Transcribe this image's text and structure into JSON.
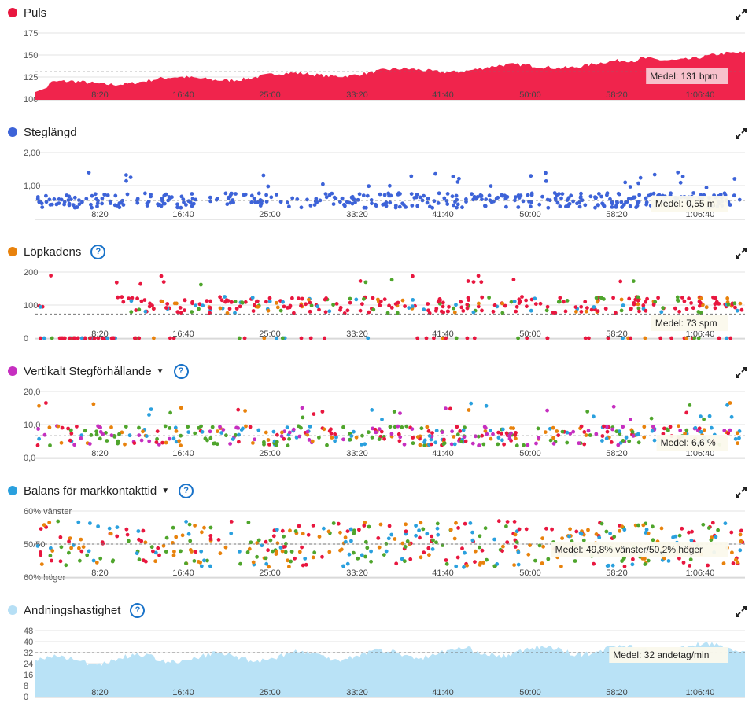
{
  "xlabels": [
    "8:20",
    "16:40",
    "25:00",
    "33:20",
    "41:40",
    "50:00",
    "58:20",
    "1:06:40"
  ],
  "panels": [
    {
      "key": "puls",
      "title": "Puls",
      "color": "#e8173f",
      "help": false,
      "caret": false,
      "yticks": [
        "175",
        "150",
        "125",
        "100"
      ],
      "yvalues": [
        175,
        150,
        125,
        100
      ],
      "ylim": [
        100,
        175
      ],
      "mean_label": "Medel: 131 bpm",
      "mean_value": 131,
      "kind": "area",
      "fill": "#f0244c"
    },
    {
      "key": "steglangd",
      "title": "Steglängd",
      "color": "#3d63d8",
      "help": false,
      "caret": false,
      "yticks": [
        "2,00",
        "1,00"
      ],
      "yvalues": [
        2.0,
        1.0
      ],
      "ylim": [
        0,
        2.0
      ],
      "mean_label": "Medel: 0,55 m",
      "mean_value": 0.55,
      "kind": "dots"
    },
    {
      "key": "lopkadens",
      "title": "Löpkadens",
      "color": "#e8820c",
      "help": true,
      "caret": false,
      "yticks": [
        "200",
        "100",
        "0"
      ],
      "yvalues": [
        200,
        100,
        0
      ],
      "ylim": [
        0,
        200
      ],
      "mean_label": "Medel: 73 spm",
      "mean_value": 73,
      "kind": "dots"
    },
    {
      "key": "vertikalt",
      "title": "Vertikalt Stegförhållande",
      "color": "#c62fc0",
      "help": true,
      "caret": true,
      "yticks": [
        "20,0",
        "10,0",
        "0,0"
      ],
      "yvalues": [
        20,
        10,
        0
      ],
      "ylim": [
        0,
        20
      ],
      "mean_label": "Medel: 6,6 %",
      "mean_value": 6.6,
      "kind": "dots"
    },
    {
      "key": "balans",
      "title": "Balans för markkontakttid",
      "color": "#2aa0de",
      "help": true,
      "caret": true,
      "yticks": [
        "60% vänster",
        "50/50",
        "60% höger"
      ],
      "yvalues": [
        60,
        50,
        40
      ],
      "ylim": [
        40,
        60
      ],
      "mean_label": "Medel: 49,8% vänster/50,2% höger",
      "mean_value": 50,
      "kind": "dots"
    },
    {
      "key": "andning",
      "title": "Andningshastighet",
      "color": "#b6dff5",
      "help": true,
      "caret": false,
      "yticks": [
        "48",
        "40",
        "32",
        "24",
        "16",
        "8",
        "0"
      ],
      "yvalues": [
        48,
        40,
        32,
        24,
        16,
        8,
        0
      ],
      "ylim": [
        0,
        48
      ],
      "mean_label": "Medel: 32 andetag/min",
      "mean_value": 32,
      "kind": "area",
      "fill": "#b9e2f6"
    }
  ]
}
